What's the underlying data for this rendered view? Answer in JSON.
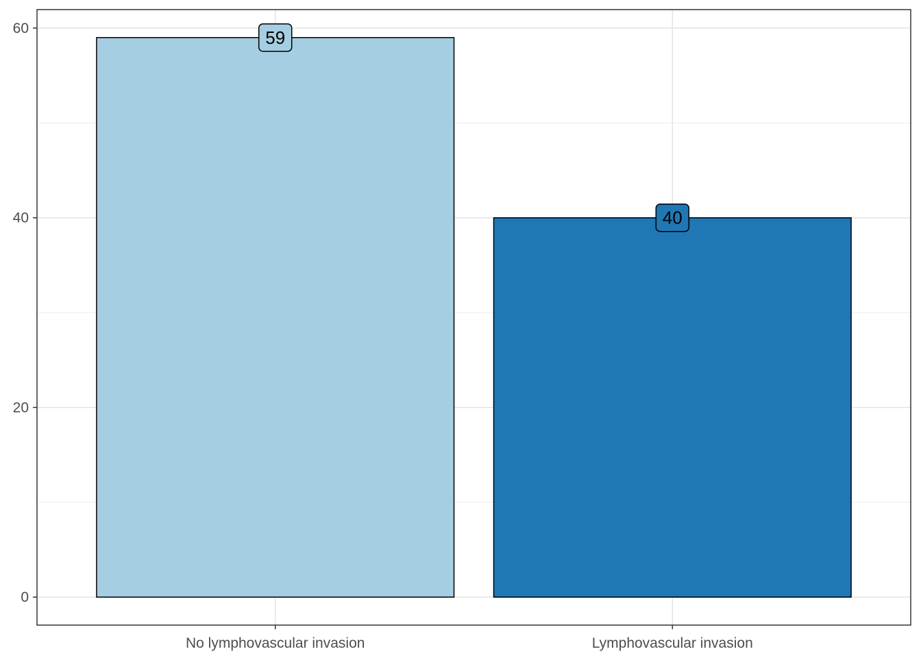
{
  "chart_data": {
    "type": "bar",
    "categories": [
      "No lymphovascular invasion",
      "Lymphovascular invasion"
    ],
    "values": [
      59,
      40
    ],
    "data_labels": [
      "59",
      "40"
    ],
    "colors": [
      "#a6cee3",
      "#1f78b4"
    ],
    "title": "",
    "xlabel": "",
    "ylabel": "",
    "ylim": [
      -2.95,
      61.95
    ],
    "yticks": [
      0,
      20,
      40,
      60
    ],
    "ytick_labels": [
      "0",
      "20",
      "40",
      "60"
    ],
    "grid": true,
    "legend": "none"
  }
}
